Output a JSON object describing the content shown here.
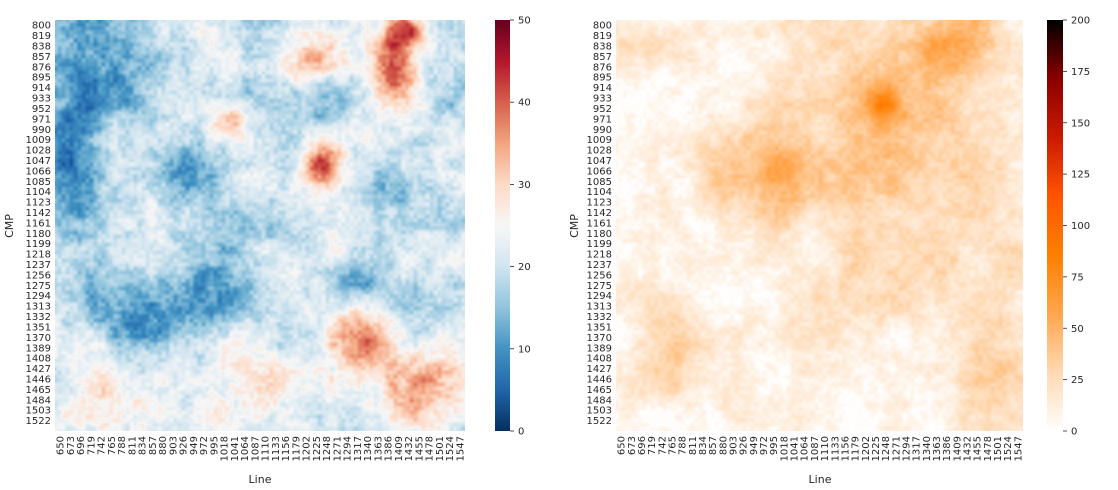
{
  "chart_data": [
    {
      "type": "heatmap",
      "title": "",
      "xlabel": "Line",
      "ylabel": "CMP",
      "colormap": "RdBu_r",
      "colors": [
        "#053061",
        "#2166ac",
        "#4393c3",
        "#92c5de",
        "#d1e5f0",
        "#f7f7f7",
        "#fddbc7",
        "#f4a582",
        "#d6604d",
        "#b2182b",
        "#67001f"
      ],
      "colorbar": {
        "range": [
          0,
          50
        ],
        "ticks": [
          "0",
          "10",
          "20",
          "30",
          "40",
          "50"
        ]
      },
      "x_ticks": [
        "650",
        "673",
        "696",
        "719",
        "742",
        "765",
        "788",
        "811",
        "834",
        "857",
        "880",
        "903",
        "926",
        "949",
        "972",
        "995",
        "1018",
        "1041",
        "1064",
        "1087",
        "1110",
        "1133",
        "1156",
        "1179",
        "1202",
        "1225",
        "1248",
        "1271",
        "1294",
        "1317",
        "1340",
        "1363",
        "1386",
        "1409",
        "1432",
        "1455",
        "1478",
        "1501",
        "1524",
        "1547"
      ],
      "y_ticks": [
        "800",
        "819",
        "838",
        "857",
        "876",
        "895",
        "914",
        "933",
        "952",
        "971",
        "990",
        "1009",
        "1028",
        "1047",
        "1066",
        "1085",
        "1104",
        "1123",
        "1142",
        "1161",
        "1180",
        "1199",
        "1218",
        "1237",
        "1256",
        "1275",
        "1294",
        "1313",
        "1332",
        "1351",
        "1370",
        "1389",
        "1408",
        "1427",
        "1446",
        "1465",
        "1484",
        "1503",
        "1522"
      ],
      "xlim": [
        650,
        1547
      ],
      "ylim": [
        800,
        1540
      ],
      "background_value": 20,
      "features": [
        {
          "x": 690,
          "y": 1040,
          "sx": 45,
          "sy": 95,
          "amp": -14
        },
        {
          "x": 770,
          "y": 880,
          "sx": 60,
          "sy": 60,
          "amp": -9
        },
        {
          "x": 860,
          "y": 1330,
          "sx": 90,
          "sy": 50,
          "amp": -11
        },
        {
          "x": 990,
          "y": 1250,
          "sx": 70,
          "sy": 60,
          "amp": -6
        },
        {
          "x": 940,
          "y": 1060,
          "sx": 45,
          "sy": 35,
          "amp": -9
        },
        {
          "x": 1230,
          "y": 930,
          "sx": 45,
          "sy": 40,
          "amp": -9
        },
        {
          "x": 1400,
          "y": 1110,
          "sx": 60,
          "sy": 40,
          "amp": -6
        },
        {
          "x": 1300,
          "y": 1270,
          "sx": 40,
          "sy": 25,
          "amp": -9
        },
        {
          "x": 1215,
          "y": 880,
          "sx": 40,
          "sy": 40,
          "amp": 13
        },
        {
          "x": 1390,
          "y": 880,
          "sx": 35,
          "sy": 50,
          "amp": 20
        },
        {
          "x": 1420,
          "y": 820,
          "sx": 30,
          "sy": 20,
          "amp": 16
        },
        {
          "x": 1230,
          "y": 1060,
          "sx": 30,
          "sy": 30,
          "amp": 20
        },
        {
          "x": 1320,
          "y": 1370,
          "sx": 45,
          "sy": 40,
          "amp": 17
        },
        {
          "x": 1440,
          "y": 1460,
          "sx": 70,
          "sy": 55,
          "amp": 16
        },
        {
          "x": 1030,
          "y": 980,
          "sx": 35,
          "sy": 25,
          "amp": 11
        },
        {
          "x": 790,
          "y": 1470,
          "sx": 90,
          "sy": 55,
          "amp": 9
        },
        {
          "x": 1070,
          "y": 1440,
          "sx": 70,
          "sy": 40,
          "amp": 10
        }
      ]
    },
    {
      "type": "heatmap",
      "title": "",
      "xlabel": "Line",
      "ylabel": "CMP",
      "colormap": "gist_heat_r",
      "colors": [
        "#ffffff",
        "#ffd9b3",
        "#ffa64d",
        "#ff7f00",
        "#ff5500",
        "#cc1a00",
        "#8c0000",
        "#000000"
      ],
      "colorbar": {
        "range": [
          0,
          200
        ],
        "ticks": [
          "0",
          "25",
          "50",
          "75",
          "100",
          "125",
          "150",
          "175",
          "200"
        ]
      },
      "x_ticks": [
        "650",
        "673",
        "696",
        "719",
        "742",
        "765",
        "788",
        "811",
        "834",
        "857",
        "880",
        "903",
        "926",
        "949",
        "972",
        "995",
        "1018",
        "1041",
        "1064",
        "1087",
        "1110",
        "1133",
        "1156",
        "1179",
        "1202",
        "1225",
        "1248",
        "1271",
        "1294",
        "1317",
        "1340",
        "1363",
        "1386",
        "1409",
        "1432",
        "1455",
        "1478",
        "1501",
        "1524",
        "1547"
      ],
      "y_ticks": [
        "800",
        "819",
        "838",
        "857",
        "876",
        "895",
        "914",
        "933",
        "952",
        "971",
        "990",
        "1009",
        "1028",
        "1047",
        "1066",
        "1085",
        "1104",
        "1123",
        "1142",
        "1161",
        "1180",
        "1199",
        "1218",
        "1237",
        "1256",
        "1275",
        "1294",
        "1313",
        "1332",
        "1351",
        "1370",
        "1389",
        "1408",
        "1427",
        "1446",
        "1465",
        "1484",
        "1503",
        "1522"
      ],
      "xlim": [
        650,
        1547
      ],
      "ylim": [
        800,
        1540
      ],
      "background_value": 4,
      "features": [
        {
          "x": 730,
          "y": 840,
          "sx": 50,
          "sy": 35,
          "amp": 28
        },
        {
          "x": 1000,
          "y": 1070,
          "sx": 70,
          "sy": 65,
          "amp": 38
        },
        {
          "x": 870,
          "y": 1090,
          "sx": 35,
          "sy": 35,
          "amp": 32
        },
        {
          "x": 1200,
          "y": 920,
          "sx": 160,
          "sy": 140,
          "amp": 24
        },
        {
          "x": 1350,
          "y": 1110,
          "sx": 160,
          "sy": 200,
          "amp": 22
        },
        {
          "x": 1400,
          "y": 830,
          "sx": 60,
          "sy": 40,
          "amp": 36
        },
        {
          "x": 770,
          "y": 1400,
          "sx": 55,
          "sy": 60,
          "amp": 34
        },
        {
          "x": 1240,
          "y": 950,
          "sx": 25,
          "sy": 25,
          "amp": 42
        },
        {
          "x": 1480,
          "y": 1400,
          "sx": 70,
          "sy": 120,
          "amp": 22
        },
        {
          "x": 1080,
          "y": 1340,
          "sx": 90,
          "sy": 80,
          "amp": 14
        }
      ]
    }
  ]
}
